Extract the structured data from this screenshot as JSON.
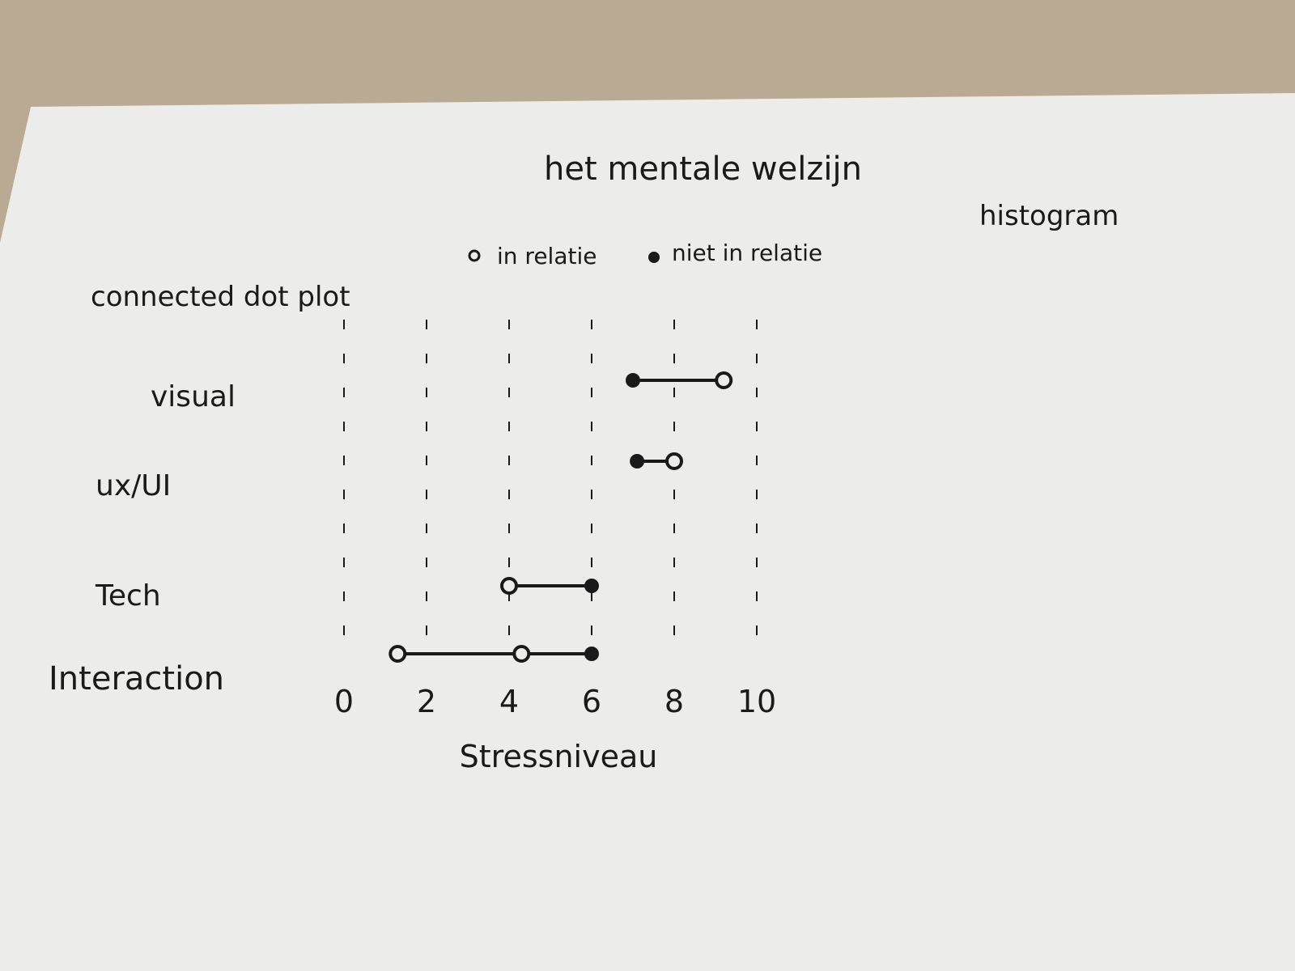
{
  "page": {
    "title": "het mentale welzijn",
    "note_top_right": "histogram",
    "note_left": "connected dot plot"
  },
  "colors": {
    "paper": "#ececea",
    "ink": "#1a1a1a",
    "background": "#b9ab93"
  },
  "chart_data": {
    "type": "scatter",
    "subtype": "connected dot plot",
    "title": "het mentale welzijn",
    "xlabel": "Stressniveau",
    "ylabel": "",
    "xlim": [
      0,
      10
    ],
    "x_ticks": [
      "0",
      "2",
      "4",
      "6",
      "8",
      "10"
    ],
    "grid": true,
    "legend_position": "top",
    "categories": [
      "visual",
      "ux/UI",
      "Tech",
      "Interaction"
    ],
    "series": [
      {
        "name": "in relatie",
        "marker": "open-circle",
        "values": [
          9.2,
          8.0,
          4.0,
          1.3
        ]
      },
      {
        "name": "niet in relatie",
        "marker": "filled-circle",
        "values": [
          7.0,
          7.1,
          6.0,
          6.0
        ]
      }
    ],
    "extra_points": [
      {
        "category": "Interaction",
        "series": "in relatie",
        "marker": "open-circle",
        "x": 4.3
      }
    ]
  }
}
